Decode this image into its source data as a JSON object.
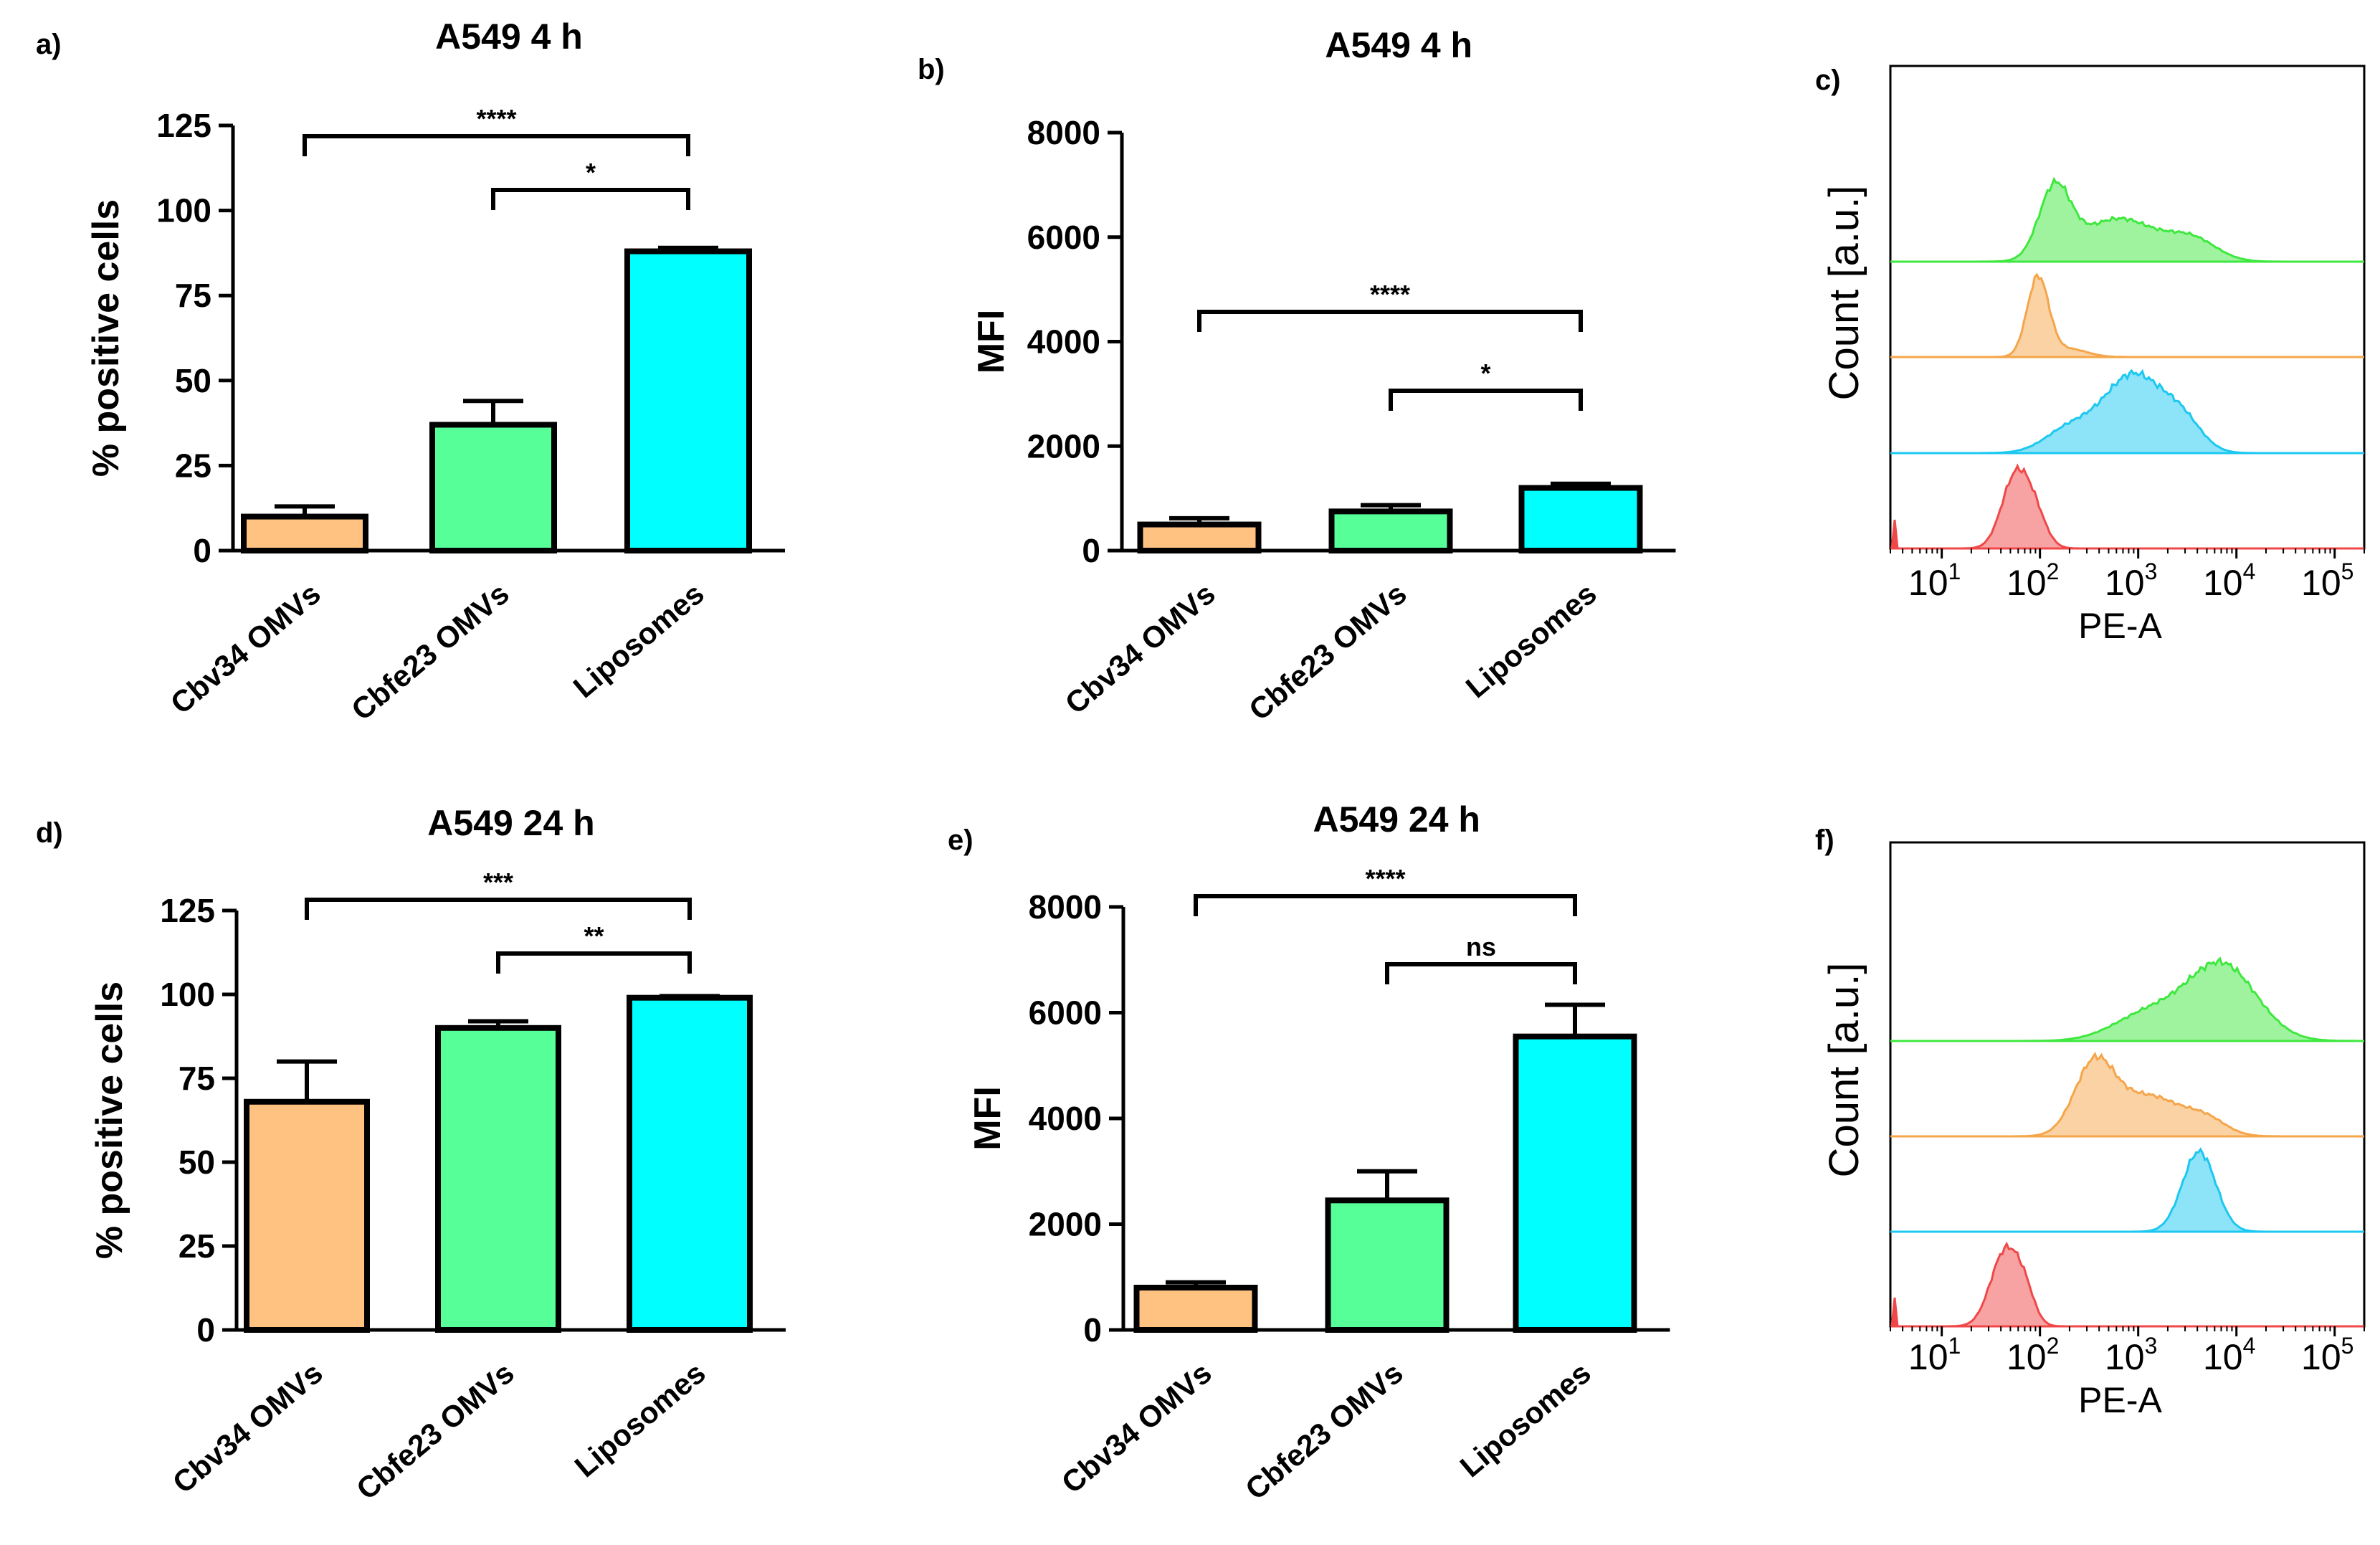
{
  "colors": {
    "cbv34": "#FFC281",
    "cbfe23": "#57FF99",
    "liposomes": "#00FFFF",
    "hist_green": "#3FE83F",
    "hist_orange": "#F5A54A",
    "hist_cyan": "#1CC8F0",
    "hist_red": "#F04848"
  },
  "panel_letters": [
    "a)",
    "b)",
    "c)",
    "d)",
    "e)",
    "f)"
  ],
  "chart_data": [
    {
      "id": "a",
      "type": "bar",
      "title": "A549 4 h",
      "ylabel": "% positive cells",
      "xlabel": "",
      "categories": [
        "Cbv34 OMVs",
        "Cbfe23 OMVs",
        "Liposomes"
      ],
      "values": [
        10,
        37,
        88
      ],
      "errors": [
        3,
        7,
        1
      ],
      "ylim": [
        0,
        125
      ],
      "yticks": [
        0,
        25,
        50,
        75,
        100,
        125
      ],
      "significance": [
        {
          "from": 0,
          "to": 2,
          "label": "****",
          "level": 1
        },
        {
          "from": 1,
          "to": 2,
          "label": "*",
          "level": 0
        }
      ]
    },
    {
      "id": "b",
      "type": "bar",
      "title": "A549 4 h",
      "ylabel": "MFI",
      "xlabel": "",
      "categories": [
        "Cbv34 OMVs",
        "Cbfe23 OMVs",
        "Liposomes"
      ],
      "values": [
        500,
        750,
        1200
      ],
      "errors": [
        120,
        120,
        80
      ],
      "ylim": [
        0,
        8000
      ],
      "yticks": [
        0,
        2000,
        4000,
        6000,
        8000
      ],
      "significance": [
        {
          "from": 0,
          "to": 2,
          "label": "****",
          "level": 1
        },
        {
          "from": 1,
          "to": 2,
          "label": "*",
          "level": 0
        }
      ]
    },
    {
      "id": "c",
      "type": "histogram-overlay",
      "xlabel": "PE-A",
      "ylabel": "Count [a.u.]",
      "x_scale": "log",
      "x_range": [
        3,
        200000
      ],
      "xticks": [
        {
          "base": "10",
          "exp": "1"
        },
        {
          "base": "10",
          "exp": "2"
        },
        {
          "base": "10",
          "exp": "3"
        },
        {
          "base": "10",
          "exp": "4"
        },
        {
          "base": "10",
          "exp": "5"
        }
      ],
      "histograms": [
        {
          "name": "green",
          "color_key": "hist_green",
          "row": 0,
          "peak_log": 2.15,
          "peaks": [
            [
              2.15,
              0.16,
              1.0
            ],
            [
              2.8,
              0.38,
              0.62
            ],
            [
              3.55,
              0.25,
              0.3
            ]
          ]
        },
        {
          "name": "orange",
          "color_key": "hist_orange",
          "row": 1,
          "peak_log": 1.98,
          "peaks": [
            [
              1.98,
              0.11,
              1.0
            ],
            [
              2.3,
              0.18,
              0.1
            ]
          ]
        },
        {
          "name": "cyan",
          "color_key": "hist_cyan",
          "row": 2,
          "peak_log": 3.0,
          "peaks": [
            [
              2.95,
              0.3,
              1.0
            ],
            [
              2.3,
              0.25,
              0.3
            ],
            [
              3.45,
              0.2,
              0.35
            ]
          ]
        },
        {
          "name": "red",
          "color_key": "hist_red",
          "row": 3,
          "peak_log": 1.75,
          "peaks": [
            [
              1.75,
              0.14,
              1.0
            ],
            [
              1.95,
              0.12,
              0.4
            ]
          ]
        }
      ]
    },
    {
      "id": "d",
      "type": "bar",
      "title": "A549 24 h",
      "ylabel": "% positive cells",
      "xlabel": "",
      "categories": [
        "Cbv34 OMVs",
        "Cbfe23 OMVs",
        "Liposomes"
      ],
      "values": [
        68,
        90,
        99
      ],
      "errors": [
        12,
        2,
        0.5
      ],
      "ylim": [
        0,
        125
      ],
      "yticks": [
        0,
        25,
        50,
        75,
        100,
        125
      ],
      "significance": [
        {
          "from": 0,
          "to": 2,
          "label": "***",
          "level": 1
        },
        {
          "from": 1,
          "to": 2,
          "label": "**",
          "level": 0
        }
      ]
    },
    {
      "id": "e",
      "type": "bar",
      "title": "A549 24 h",
      "ylabel": "MFI",
      "xlabel": "",
      "categories": [
        "Cbv34 OMVs",
        "Cbfe23 OMVs",
        "Liposomes"
      ],
      "values": [
        800,
        2450,
        5550
      ],
      "errors": [
        100,
        550,
        600
      ],
      "ylim": [
        0,
        8000
      ],
      "yticks": [
        0,
        2000,
        4000,
        6000,
        8000
      ],
      "significance": [
        {
          "from": 0,
          "to": 2,
          "label": "****",
          "level": 1
        },
        {
          "from": 1,
          "to": 2,
          "label": "ns",
          "level": 0
        }
      ]
    },
    {
      "id": "f",
      "type": "histogram-overlay",
      "xlabel": "PE-A",
      "ylabel": "Count [a.u.]",
      "x_scale": "log",
      "x_range": [
        3,
        200000
      ],
      "xticks": [
        {
          "base": "10",
          "exp": "1"
        },
        {
          "base": "10",
          "exp": "2"
        },
        {
          "base": "10",
          "exp": "3"
        },
        {
          "base": "10",
          "exp": "4"
        },
        {
          "base": "10",
          "exp": "5"
        }
      ],
      "histograms": [
        {
          "name": "green",
          "color_key": "hist_green",
          "row": 0,
          "peak_log": 3.9,
          "peaks": [
            [
              3.85,
              0.35,
              1.0
            ],
            [
              3.1,
              0.35,
              0.35
            ]
          ]
        },
        {
          "name": "orange",
          "color_key": "hist_orange",
          "row": 1,
          "peak_log": 2.55,
          "peaks": [
            [
              2.55,
              0.2,
              1.0
            ],
            [
              3.1,
              0.35,
              0.6
            ],
            [
              3.7,
              0.2,
              0.2
            ]
          ]
        },
        {
          "name": "cyan",
          "color_key": "hist_cyan",
          "row": 2,
          "peak_log": 3.6,
          "peaks": [
            [
              3.62,
              0.17,
              1.0
            ]
          ]
        },
        {
          "name": "red",
          "color_key": "hist_red",
          "row": 3,
          "peak_log": 1.65,
          "peaks": [
            [
              1.65,
              0.15,
              1.0
            ],
            [
              1.85,
              0.1,
              0.3
            ]
          ]
        }
      ]
    }
  ]
}
